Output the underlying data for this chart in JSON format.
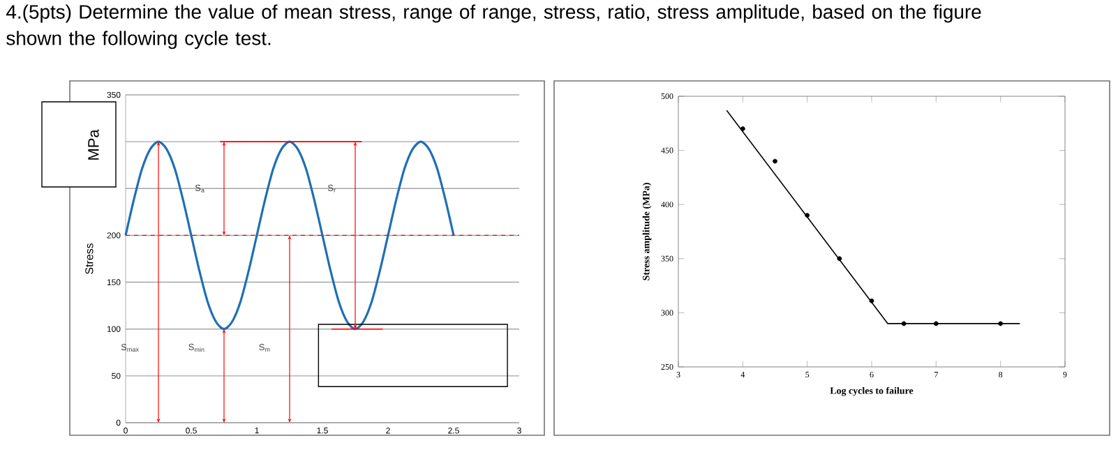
{
  "chart_data": [
    {
      "type": "line",
      "title": "4.(5pts) Determine the value of mean stress, range of range, stress, ratio, stress amplitude, based on the figure shown the following cycle test.",
      "ylabel": "Stress",
      "xlim": [
        0,
        3
      ],
      "xticks": [
        0,
        0.5,
        1,
        1.5,
        2,
        2.5,
        3
      ],
      "ylim": [
        0,
        350
      ],
      "yticks": [
        0,
        50,
        100,
        150,
        200,
        {
          "value": 250,
          "label": null
        },
        {
          "value": 300,
          "label": null
        },
        350
      ],
      "grid": "y",
      "series": [
        {
          "color": "#1f6fb5",
          "x": [
            0,
            0.0625,
            0.125,
            0.1875,
            0.25,
            0.3125,
            0.375,
            0.4375,
            0.5,
            0.5625,
            0.625,
            0.6875,
            0.75,
            0.8125,
            0.875,
            0.9375,
            1,
            1.0625,
            1.125,
            1.1875,
            1.25,
            1.3125,
            1.375,
            1.4375,
            1.5,
            1.5625,
            1.625,
            1.6875,
            1.75,
            1.8125,
            1.875,
            1.9375,
            2,
            2.0625,
            2.125,
            2.1875,
            2.25,
            2.3125,
            2.375,
            2.4375,
            2.5
          ],
          "values": [
            200,
            238,
            271,
            292,
            300,
            292,
            271,
            238,
            200,
            162,
            129,
            108,
            100,
            108,
            129,
            162,
            200,
            238,
            271,
            292,
            300,
            292,
            271,
            238,
            200,
            162,
            129,
            108,
            100,
            108,
            129,
            162,
            200,
            238,
            271,
            292,
            300,
            292,
            271,
            238,
            200
          ]
        },
        {
          "color": "#ff0000",
          "x": [
            0.72,
            1.8
          ],
          "values": [
            300,
            300
          ]
        },
        {
          "color": "#ff0000",
          "x": [
            1.57,
            1.96
          ],
          "values": [
            100,
            100
          ]
        }
      ],
      "ref_lines": [
        {
          "axis": "y",
          "value": 200,
          "color": "#ff0000",
          "line_style": "dashed"
        }
      ],
      "annotations": [
        "MPa",
        "S$_{max}$",
        "S$_{min}$",
        "S$_{m}$",
        "S$_{a}$",
        "S$_{r}$"
      ]
    },
    {
      "type": "scatter",
      "xlabel": "Log cycles to failure",
      "ylabel": "Stress amplitude (MPa)",
      "xlim": [
        3,
        9
      ],
      "xticks": [
        3,
        4,
        5,
        6,
        7,
        8,
        9
      ],
      "ylim": [
        250,
        500
      ],
      "yticks": [
        250,
        300,
        350,
        400,
        450,
        500
      ],
      "series": [
        {
          "color": "#000000",
          "marker": "circle",
          "x": [
            4,
            4.5,
            5,
            5.5,
            6,
            6.5,
            7,
            8
          ],
          "values": [
            470,
            440,
            390,
            350,
            311,
            290,
            290,
            290
          ]
        },
        {
          "type": "line",
          "color": "#000000",
          "marker": "none",
          "x": [
            3.75,
            6.25,
            8.3
          ],
          "values": [
            487,
            290,
            290
          ]
        }
      ]
    }
  ]
}
